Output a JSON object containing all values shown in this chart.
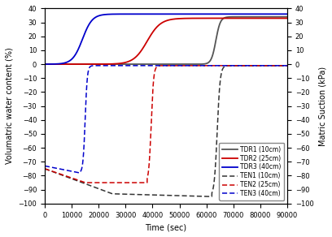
{
  "title": "",
  "xlabel": "Time (sec)",
  "ylabel_left": "Volumatric water content (%)",
  "ylabel_right": "Matric Suction (kPa)",
  "xlim": [
    0,
    90000
  ],
  "ylim": [
    -100,
    40
  ],
  "xticks": [
    0,
    10000,
    20000,
    30000,
    40000,
    50000,
    60000,
    70000,
    80000,
    90000
  ],
  "yticks": [
    -100,
    -90,
    -80,
    -70,
    -60,
    -50,
    -40,
    -30,
    -20,
    -10,
    0,
    10,
    20,
    30,
    40
  ],
  "background_color": "#ffffff",
  "tdr1_color": "#555555",
  "tdr2_color": "#cc0000",
  "tdr3_color": "#0000cc",
  "ten1_color": "#333333",
  "ten2_color": "#cc0000",
  "ten3_color": "#0000cc"
}
